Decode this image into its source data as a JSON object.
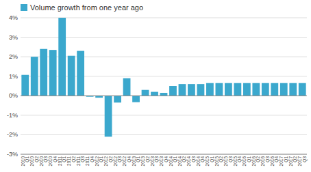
{
  "chart_data": {
    "type": "bar",
    "categories": [
      "2010\nQ1",
      "2010\nQ2",
      "2010\nQ3",
      "2010\nQ4",
      "2011\nQ1",
      "2011\nQ2",
      "2011\nQ3",
      "2011\nQ4",
      "2012\nQ1",
      "2012\nQ2",
      "2012\nQ3",
      "2012\nQ4",
      "2013\nQ1",
      "2013\nQ2",
      "2013\nQ3",
      "2013\nQ4",
      "2014\nQ1",
      "2014\nQ2",
      "2014\nQ3",
      "2014\nQ4",
      "2015\nQ1",
      "2015\nQ2",
      "2015\nQ3",
      "2015\nQ4",
      "2016\nQ1",
      "2016\nQ2",
      "2016\nQ3",
      "2016\nQ4",
      "2017\nQ1",
      "2017\nQ2",
      "2017\nQ3"
    ],
    "series": [
      {
        "name": "Volume growth from one year ago",
        "color": "#3BA8CD",
        "values": [
          1.07,
          2.0,
          2.4,
          2.35,
          4.0,
          2.05,
          2.3,
          -0.05,
          -0.1,
          -2.1,
          -0.35,
          0.9,
          -0.33,
          0.3,
          0.2,
          0.15,
          0.5,
          0.6,
          0.6,
          0.6,
          0.65,
          0.65,
          0.65,
          0.65,
          0.65,
          0.65,
          0.65,
          0.65,
          0.65,
          0.65,
          0.65
        ]
      }
    ],
    "ylim": [
      -3,
      4
    ],
    "yticks": [
      {
        "value": -3,
        "label": "-3%"
      },
      {
        "value": -2,
        "label": "-2%"
      },
      {
        "value": -1,
        "label": "-1%"
      },
      {
        "value": 0,
        "label": "0%"
      },
      {
        "value": 1,
        "label": "1%"
      },
      {
        "value": 2,
        "label": "2%"
      },
      {
        "value": 3,
        "label": "3%"
      },
      {
        "value": 4,
        "label": "4%"
      }
    ],
    "grid": true,
    "legend": "top"
  }
}
